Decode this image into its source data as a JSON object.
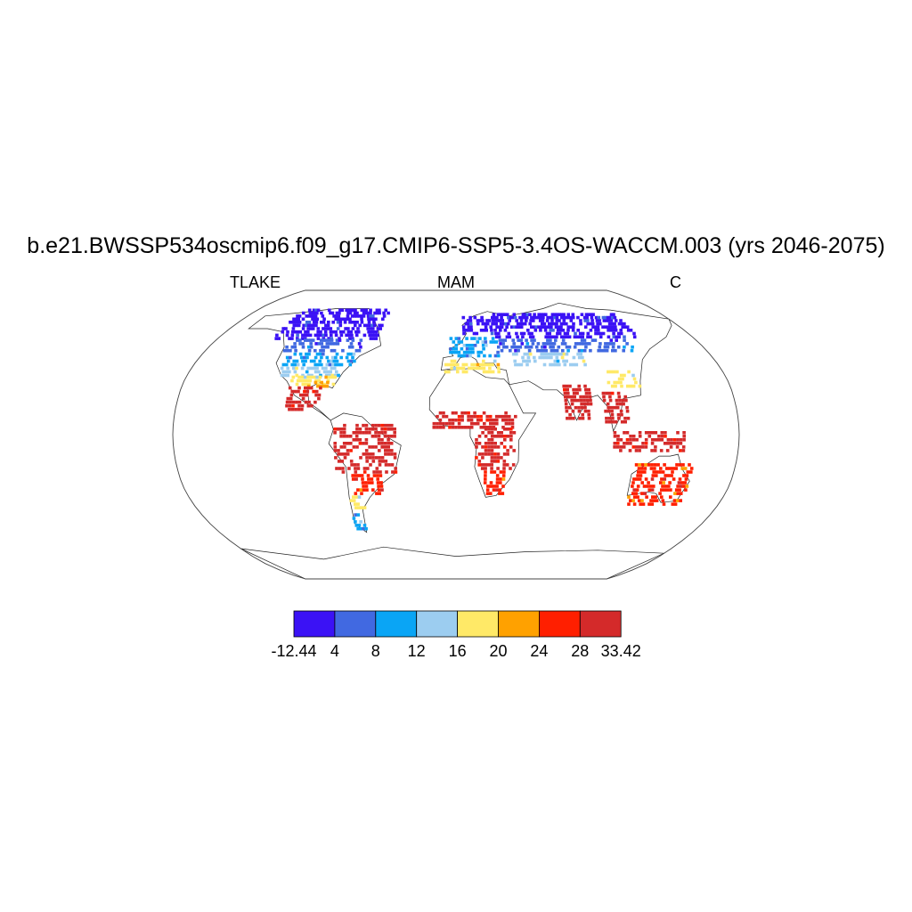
{
  "title": "b.e21.BWSSP534oscmip6.f09_g17.CMIP6-SSP5-3.4OS-WACCM.003 (yrs 2046-2075)",
  "subtitle_left": "TLAKE",
  "subtitle_center": "MAM",
  "subtitle_right": "C",
  "colorbar": {
    "labels": [
      "-12.44",
      "4",
      "8",
      "12",
      "16",
      "20",
      "24",
      "28",
      "33.42"
    ],
    "colors": [
      "#3b12f5",
      "#4169e1",
      "#0aa5f5",
      "#9ccdf0",
      "#ffe967",
      "#ffa100",
      "#ff1f00",
      "#d42a2a"
    ]
  },
  "map_data": {
    "projection": "robinson",
    "regions": [
      {
        "name": "canada-arctic",
        "lon": [
          -140,
          -60
        ],
        "lat": [
          55,
          75
        ],
        "color": 0
      },
      {
        "name": "canada-south",
        "lon": [
          -125,
          -70
        ],
        "lat": [
          48,
          56
        ],
        "color": 1
      },
      {
        "name": "usa-north",
        "lon": [
          -122,
          -70
        ],
        "lat": [
          40,
          48
        ],
        "color": 2
      },
      {
        "name": "usa-mid",
        "lon": [
          -120,
          -78
        ],
        "lat": [
          34,
          40
        ],
        "color": 3
      },
      {
        "name": "usa-south",
        "lon": [
          -110,
          -80
        ],
        "lat": [
          29,
          34
        ],
        "color": 4
      },
      {
        "name": "gulf-coast",
        "lon": [
          -98,
          -85
        ],
        "lat": [
          28,
          32
        ],
        "color": 5
      },
      {
        "name": "mexico",
        "lon": [
          -110,
          -88
        ],
        "lat": [
          15,
          28
        ],
        "color": 7
      },
      {
        "name": "south-america-north",
        "lon": [
          -78,
          -38
        ],
        "lat": [
          -20,
          8
        ],
        "color": 7
      },
      {
        "name": "south-america-mid",
        "lon": [
          -68,
          -48
        ],
        "lat": [
          -32,
          -20
        ],
        "color": 6
      },
      {
        "name": "south-america-south",
        "lon": [
          -72,
          -62
        ],
        "lat": [
          -40,
          -32
        ],
        "color": 4
      },
      {
        "name": "patagonia",
        "lon": [
          -74,
          -66
        ],
        "lat": [
          -52,
          -42
        ],
        "color": 2
      },
      {
        "name": "scandinavia",
        "lon": [
          5,
          30
        ],
        "lat": [
          58,
          70
        ],
        "color": 0
      },
      {
        "name": "siberia",
        "lon": [
          30,
          140
        ],
        "lat": [
          56,
          72
        ],
        "color": 0
      },
      {
        "name": "russia-south",
        "lon": [
          30,
          130
        ],
        "lat": [
          48,
          56
        ],
        "color": 1
      },
      {
        "name": "europe",
        "lon": [
          -5,
          30
        ],
        "lat": [
          45,
          56
        ],
        "color": 2
      },
      {
        "name": "central-asia",
        "lon": [
          40,
          90
        ],
        "lat": [
          40,
          48
        ],
        "color": 3
      },
      {
        "name": "mediterranean",
        "lon": [
          -8,
          30
        ],
        "lat": [
          36,
          44
        ],
        "color": 4
      },
      {
        "name": "china",
        "lon": [
          100,
          122
        ],
        "lat": [
          28,
          38
        ],
        "color": 4
      },
      {
        "name": "sahel",
        "lon": [
          -15,
          38
        ],
        "lat": [
          5,
          15
        ],
        "color": 7
      },
      {
        "name": "central-africa",
        "lon": [
          12,
          38
        ],
        "lat": [
          -18,
          5
        ],
        "color": 7
      },
      {
        "name": "south-africa",
        "lon": [
          18,
          32
        ],
        "lat": [
          -32,
          -18
        ],
        "color": 6
      },
      {
        "name": "india",
        "lon": [
          70,
          88
        ],
        "lat": [
          10,
          30
        ],
        "color": 7
      },
      {
        "name": "southeast-asia",
        "lon": [
          95,
          110
        ],
        "lat": [
          8,
          25
        ],
        "color": 7
      },
      {
        "name": "indonesia",
        "lon": [
          100,
          145
        ],
        "lat": [
          -8,
          4
        ],
        "color": 7
      },
      {
        "name": "australia",
        "lon": [
          115,
          152
        ],
        "lat": [
          -38,
          -15
        ],
        "color": 6
      }
    ]
  }
}
